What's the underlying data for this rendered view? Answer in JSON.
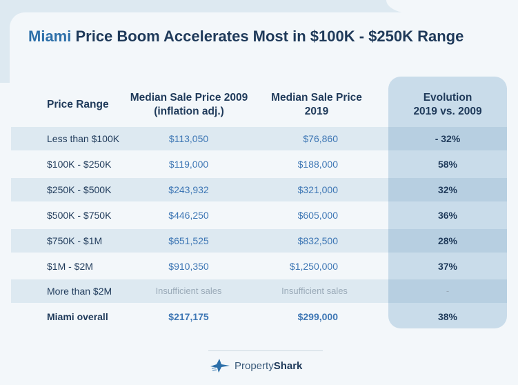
{
  "title": {
    "accent": "Miami",
    "rest": " Price Boom Accelerates Most in $100K - $250K Range"
  },
  "headers": {
    "range": "Price Range",
    "p2009_line1": "Median Sale Price 2009",
    "p2009_line2": "(inflation adj.)",
    "p2019_line1": "Median Sale Price",
    "p2019_line2": "2019",
    "evo_line1": "Evolution",
    "evo_line2": "2019 vs. 2009"
  },
  "rows": [
    {
      "range": "Less than $100K",
      "p2009": "$113,050",
      "p2019": "$76,860",
      "evo": "- 32%"
    },
    {
      "range": "$100K - $250K",
      "p2009": "$119,000",
      "p2019": "$188,000",
      "evo": "58%"
    },
    {
      "range": "$250K - $500K",
      "p2009": "$243,932",
      "p2019": "$321,000",
      "evo": "32%"
    },
    {
      "range": "$500K - $750K",
      "p2009": "$446,250",
      "p2019": "$605,000",
      "evo": "36%"
    },
    {
      "range": "$750K - $1M",
      "p2009": "$651,525",
      "p2019": "$832,500",
      "evo": "28%"
    },
    {
      "range": "$1M - $2M",
      "p2009": "$910,350",
      "p2019": "$1,250,000",
      "evo": "37%"
    },
    {
      "range": "More than $2M",
      "p2009": "Insufficient sales",
      "p2019": "Insufficient sales",
      "evo": "-"
    },
    {
      "range": "Miami overall",
      "p2009": "$217,175",
      "p2019": "$299,000",
      "evo": "38%"
    }
  ],
  "footer": {
    "brand_light": "Property",
    "brand_bold": "Shark",
    "logo_icon": "shark-logo-icon"
  },
  "colors": {
    "navy": "#1f3a5a",
    "accent_blue": "#2c6fa9",
    "value_blue": "#3d76b4",
    "row_shade": "#dde9f1",
    "evo_col": "#c9dcea"
  }
}
